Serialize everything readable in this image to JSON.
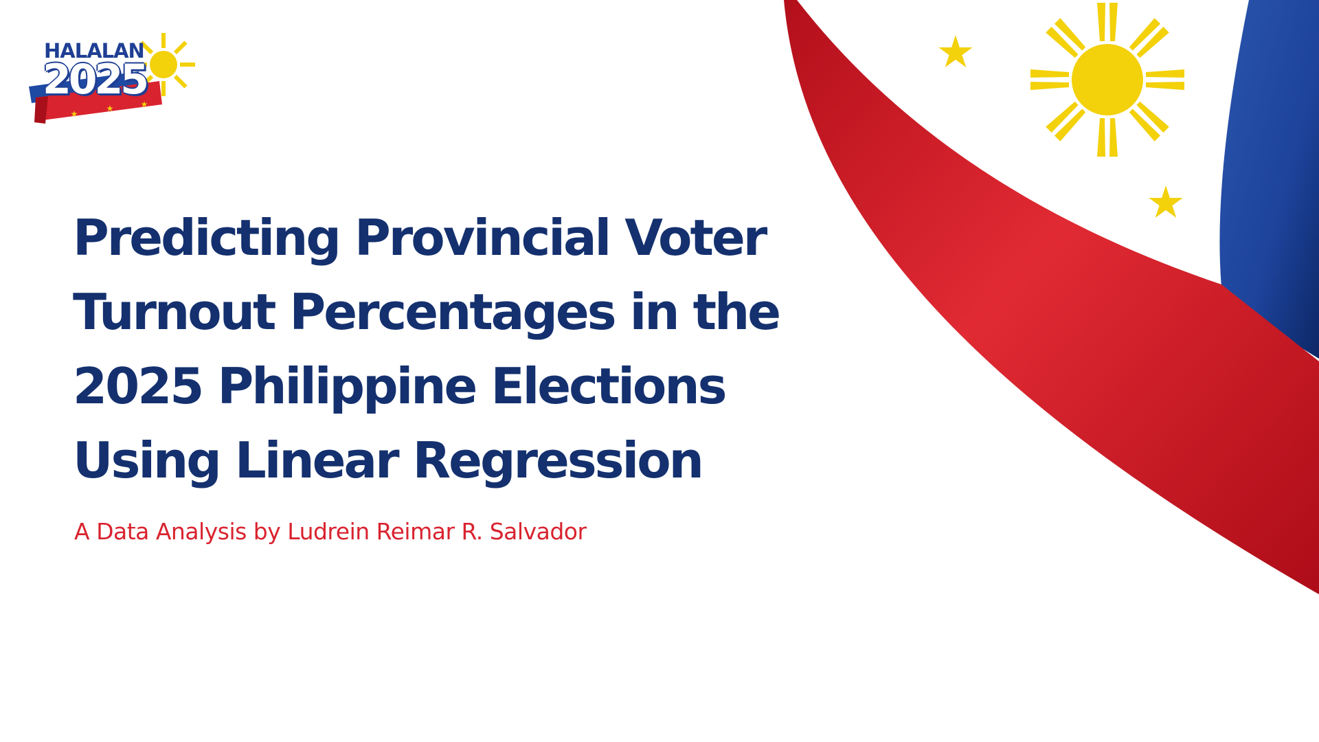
{
  "logo": {
    "word": "HALALAN",
    "year": "2025"
  },
  "title": "Predicting Provincial Voter Turnout Percentages in the 2025 Philippine Elections Using Linear Regression",
  "subtitle": "A Data Analysis by Ludrein Reimar R. Salvador",
  "colors": {
    "navy": "#14306e",
    "red": "#d9232f",
    "blue": "#1f4aa3",
    "gold": "#f3d10b"
  }
}
